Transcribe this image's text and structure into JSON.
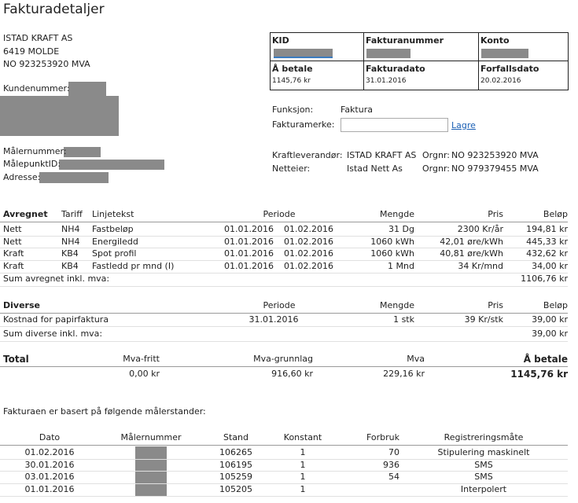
{
  "header": {
    "title": "Fakturadetaljer"
  },
  "customer": {
    "lines": [
      "ISTAD KRAFT AS",
      "6419 MOLDE",
      "NO 923253920 MVA"
    ],
    "labels": [
      "Kundenummer:",
      "Målernummer:",
      "MålepunktID:",
      "Adresse:"
    ]
  },
  "summary_box": {
    "cells": [
      {
        "label": "KID"
      },
      {
        "label": "Fakturanummer"
      },
      {
        "label": "Konto"
      },
      {
        "label": "Å betale",
        "value": "1145,76 kr"
      },
      {
        "label": "Fakturadato",
        "value": "31.01.2016"
      },
      {
        "label": "Forfallsdato",
        "value": "20.02.2016"
      }
    ]
  },
  "invoice_form": {
    "function_label": "Funksjon:",
    "function_value": "Faktura",
    "marker_label": "Fakturamerke:",
    "save_link": "Lagre"
  },
  "parties": [
    {
      "role": "Kraftleverandør:",
      "name": "ISTAD KRAFT AS",
      "orgnr_label": "Orgnr:",
      "orgnr": "NO 923253920 MVA"
    },
    {
      "role": "Netteier:",
      "name": "Istad Nett As",
      "orgnr_label": "Orgnr:",
      "orgnr": "NO 979379455 MVA"
    }
  ],
  "avregnet": {
    "headers": [
      "Avregnet",
      "Tariff",
      "Linjetekst",
      "Periode",
      "Mengde",
      "Pris",
      "Beløp"
    ],
    "rows": [
      [
        "Nett",
        "NH4",
        "Fastbeløp",
        "01.01.2016",
        "01.02.2016",
        "31 Dg",
        "2300 Kr/år",
        "194,81 kr"
      ],
      [
        "Nett",
        "NH4",
        "Energiledd",
        "01.01.2016",
        "01.02.2016",
        "1060 kWh",
        "42,01 øre/kWh",
        "445,33 kr"
      ],
      [
        "Kraft",
        "KB4",
        "Spot profil",
        "01.01.2016",
        "01.02.2016",
        "1060 kWh",
        "40,81 øre/kWh",
        "432,62 kr"
      ],
      [
        "Kraft",
        "KB4",
        "Fastledd pr mnd (I)",
        "01.01.2016",
        "01.02.2016",
        "1 Mnd",
        "34 Kr/mnd",
        "34,00 kr"
      ]
    ],
    "sum_label": "Sum avregnet inkl. mva:",
    "sum_value": "1106,76 kr"
  },
  "diverse": {
    "headers": [
      "Diverse",
      "Periode",
      "Mengde",
      "Pris",
      "Beløp"
    ],
    "rows": [
      [
        "Kostnad for papirfaktura",
        "31.01.2016",
        "1 stk",
        "39 Kr/stk",
        "39,00 kr"
      ]
    ],
    "sum_label": "Sum diverse inkl. mva:",
    "sum_value": "39,00 kr"
  },
  "total": {
    "headers": [
      "Total",
      "Mva-fritt",
      "Mva-grunnlag",
      "Mva",
      "Å betale"
    ],
    "values": [
      "0,00 kr",
      "916,60 kr",
      "229,16 kr",
      "1145,76 kr"
    ]
  },
  "meter_note": "Fakturaen er basert på følgende målerstander:",
  "meter_table": {
    "headers": [
      "Dato",
      "Målernummer",
      "Stand",
      "Konstant",
      "Forbruk",
      "Registreringsmåte"
    ],
    "rows": [
      [
        "01.02.2016",
        "106265",
        "1",
        "70",
        "Stipulering maskinelt"
      ],
      [
        "30.01.2016",
        "106195",
        "1",
        "936",
        "SMS"
      ],
      [
        "03.01.2016",
        "105259",
        "1",
        "54",
        "SMS"
      ],
      [
        "01.01.2016",
        "105205",
        "1",
        "",
        "Interpolert"
      ]
    ]
  }
}
